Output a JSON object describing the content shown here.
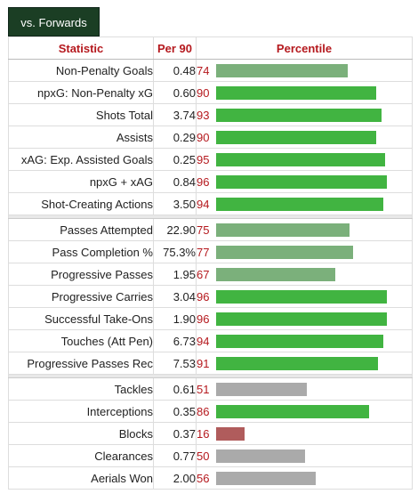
{
  "tab": {
    "label": "vs. Forwards"
  },
  "headers": {
    "statistic": "Statistic",
    "per90": "Per 90",
    "percentile": "Percentile"
  },
  "colors": {
    "high": "#41b441",
    "mid": "#7bb07b",
    "neutral": "#aaaaaa",
    "low": "#b05c5c"
  },
  "groups": [
    [
      {
        "stat": "Non-Penalty Goals",
        "per90": "0.48",
        "pct": 74,
        "color": "mid"
      },
      {
        "stat": "npxG: Non-Penalty xG",
        "per90": "0.60",
        "pct": 90,
        "color": "high"
      },
      {
        "stat": "Shots Total",
        "per90": "3.74",
        "pct": 93,
        "color": "high"
      },
      {
        "stat": "Assists",
        "per90": "0.29",
        "pct": 90,
        "color": "high"
      },
      {
        "stat": "xAG: Exp. Assisted Goals",
        "per90": "0.25",
        "pct": 95,
        "color": "high"
      },
      {
        "stat": "npxG + xAG",
        "per90": "0.84",
        "pct": 96,
        "color": "high"
      },
      {
        "stat": "Shot-Creating Actions",
        "per90": "3.50",
        "pct": 94,
        "color": "high"
      }
    ],
    [
      {
        "stat": "Passes Attempted",
        "per90": "22.90",
        "pct": 75,
        "color": "mid"
      },
      {
        "stat": "Pass Completion %",
        "per90": "75.3%",
        "pct": 77,
        "color": "mid"
      },
      {
        "stat": "Progressive Passes",
        "per90": "1.95",
        "pct": 67,
        "color": "mid"
      },
      {
        "stat": "Progressive Carries",
        "per90": "3.04",
        "pct": 96,
        "color": "high"
      },
      {
        "stat": "Successful Take-Ons",
        "per90": "1.90",
        "pct": 96,
        "color": "high"
      },
      {
        "stat": "Touches (Att Pen)",
        "per90": "6.73",
        "pct": 94,
        "color": "high"
      },
      {
        "stat": "Progressive Passes Rec",
        "per90": "7.53",
        "pct": 91,
        "color": "high"
      }
    ],
    [
      {
        "stat": "Tackles",
        "per90": "0.61",
        "pct": 51,
        "color": "neutral"
      },
      {
        "stat": "Interceptions",
        "per90": "0.35",
        "pct": 86,
        "color": "high"
      },
      {
        "stat": "Blocks",
        "per90": "0.37",
        "pct": 16,
        "color": "low"
      },
      {
        "stat": "Clearances",
        "per90": "0.77",
        "pct": 50,
        "color": "neutral"
      },
      {
        "stat": "Aerials Won",
        "per90": "2.00",
        "pct": 56,
        "color": "neutral"
      }
    ]
  ]
}
